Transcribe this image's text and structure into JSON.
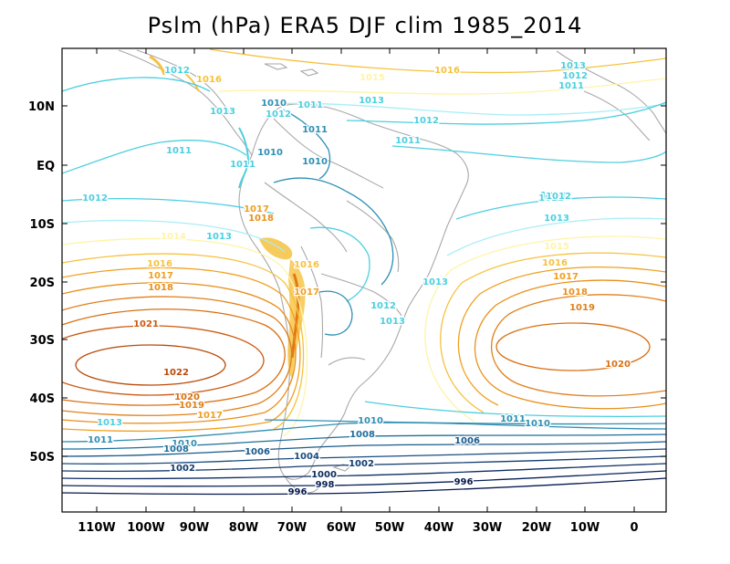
{
  "title": "Pslm (hPa) ERA5 DJF clim 1985_2014",
  "lat_ticks": [
    "10N",
    "EQ",
    "10S",
    "20S",
    "30S",
    "40S",
    "50S"
  ],
  "lon_ticks": [
    "110W",
    "100W",
    "90W",
    "80W",
    "70W",
    "60W",
    "50W",
    "40W",
    "30W",
    "20W",
    "10W",
    "0"
  ],
  "contour_labels": [
    {
      "text": "1012",
      "color": "#4ccfe0"
    },
    {
      "text": "1016",
      "color": "#f6c23e"
    },
    {
      "text": "1015",
      "color": "#fff4a8"
    },
    {
      "text": "1013",
      "color": "#4ccfe0"
    },
    {
      "text": "1012",
      "color": "#4ccfe0"
    },
    {
      "text": "1011",
      "color": "#4ccfe0"
    },
    {
      "text": "1010",
      "color": "#2e8fb3"
    },
    {
      "text": "1011",
      "color": "#4ccfe0"
    },
    {
      "text": "1010",
      "color": "#2e8fb3"
    },
    {
      "text": "1011",
      "color": "#4ccfe0"
    },
    {
      "text": "1012",
      "color": "#4ccfe0"
    },
    {
      "text": "1013",
      "color": "#4ccfe0"
    },
    {
      "text": "1017",
      "color": "#f0a020"
    },
    {
      "text": "1018",
      "color": "#e8901a"
    },
    {
      "text": "1014",
      "color": "#fff4a8"
    },
    {
      "text": "1016",
      "color": "#f6c23e"
    },
    {
      "text": "1017",
      "color": "#f0a020"
    },
    {
      "text": "1018",
      "color": "#e8901a"
    },
    {
      "text": "1021",
      "color": "#cc5a10"
    },
    {
      "text": "1022",
      "color": "#b84a0a"
    },
    {
      "text": "1020",
      "color": "#d97012"
    },
    {
      "text": "1019",
      "color": "#e0801a"
    },
    {
      "text": "1017",
      "color": "#f0a020"
    },
    {
      "text": "1013",
      "color": "#4ccfe0"
    },
    {
      "text": "1011",
      "color": "#2e8fb3"
    },
    {
      "text": "1010",
      "color": "#2e8fb3"
    },
    {
      "text": "1008",
      "color": "#1f6e9c"
    },
    {
      "text": "1006",
      "color": "#1a5a8c"
    },
    {
      "text": "1004",
      "color": "#1a4c80"
    },
    {
      "text": "1002",
      "color": "#143c70"
    },
    {
      "text": "1000",
      "color": "#0e2e62"
    },
    {
      "text": "998",
      "color": "#0a2258"
    },
    {
      "text": "996",
      "color": "#06184e"
    },
    {
      "text": "1010",
      "color": "#2e8fb3"
    },
    {
      "text": "1011",
      "color": "#2e8fb3"
    },
    {
      "text": "1012",
      "color": "#4ccfe0"
    },
    {
      "text": "1013",
      "color": "#4ccfe0"
    },
    {
      "text": "1013",
      "color": "#4ccfe0"
    },
    {
      "text": "1012",
      "color": "#4ccfe0"
    },
    {
      "text": "1011",
      "color": "#4ccfe0"
    },
    {
      "text": "1010",
      "color": "#2e8fb3"
    },
    {
      "text": "1008",
      "color": "#1f6e9c"
    },
    {
      "text": "1006",
      "color": "#1a5a8c"
    },
    {
      "text": "1002",
      "color": "#143c70"
    },
    {
      "text": "996",
      "color": "#06184e"
    },
    {
      "text": "1011",
      "color": "#2e8fb3"
    },
    {
      "text": "1010",
      "color": "#2e8fb3"
    },
    {
      "text": "1012",
      "color": "#4ccfe0"
    },
    {
      "text": "1013",
      "color": "#4ccfe0"
    },
    {
      "text": "1015",
      "color": "#fff4a8"
    },
    {
      "text": "1016",
      "color": "#f6c23e"
    },
    {
      "text": "1017",
      "color": "#f0a020"
    },
    {
      "text": "1018",
      "color": "#e8901a"
    },
    {
      "text": "1019",
      "color": "#e0801a"
    },
    {
      "text": "1020",
      "color": "#d97012"
    },
    {
      "text": "1013",
      "color": "#4ccfe0"
    },
    {
      "text": "1012",
      "color": "#4ccfe0"
    },
    {
      "text": "1011",
      "color": "#4ccfe0"
    },
    {
      "text": "1016",
      "color": "#f6c23e"
    },
    {
      "text": "1013",
      "color": "#4ccfe0"
    },
    {
      "text": "1012",
      "color": "#4ccfe0"
    },
    {
      "text": "1016",
      "color": "#f6c23e"
    },
    {
      "text": "1017",
      "color": "#f0a020"
    },
    {
      "text": "1013",
      "color": "#4ccfe0"
    }
  ]
}
